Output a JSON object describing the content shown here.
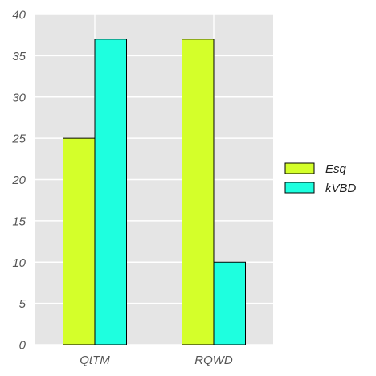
{
  "chart_data": {
    "type": "bar",
    "categories": [
      "QtTM",
      "RQWD"
    ],
    "series": [
      {
        "name": "Esq",
        "values": [
          25,
          37
        ],
        "color": "#d4ff2a"
      },
      {
        "name": "kVBD",
        "values": [
          37,
          10
        ],
        "color": "#1effdf"
      }
    ],
    "title": "",
    "xlabel": "",
    "ylabel": "",
    "ylim": [
      0,
      40
    ],
    "yticks": [
      0,
      5,
      10,
      15,
      20,
      25,
      30,
      35,
      40
    ],
    "grid": true,
    "legend_position": "right",
    "plot_background": "#e5e5e5",
    "grid_color": "#ffffff"
  }
}
